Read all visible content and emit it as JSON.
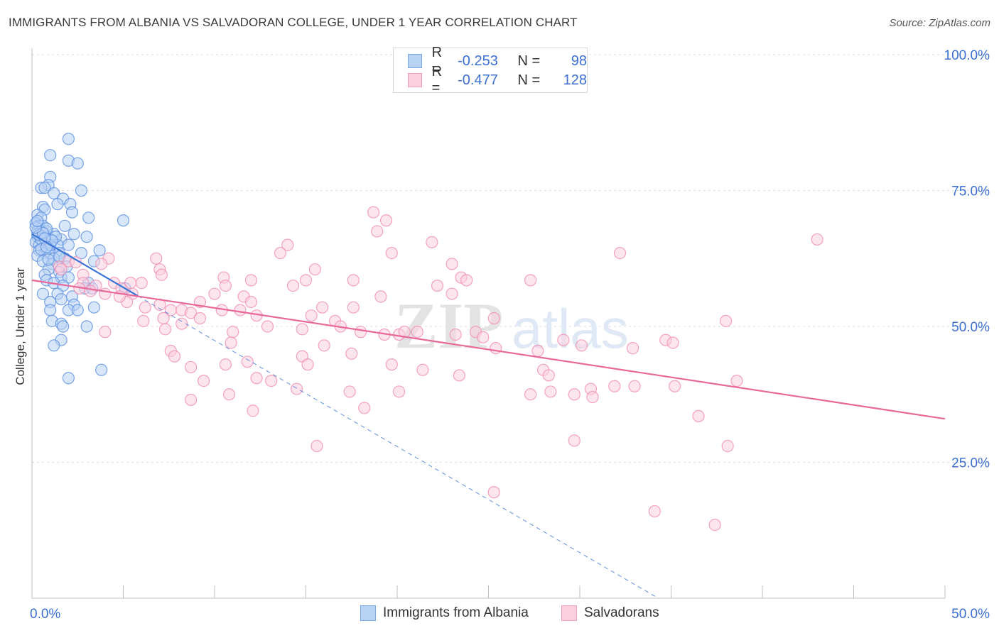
{
  "title": "IMMIGRANTS FROM ALBANIA VS SALVADORAN COLLEGE, UNDER 1 YEAR CORRELATION CHART",
  "source": "Source: ZipAtlas.com",
  "watermark": {
    "zip": "ZIP",
    "atlas": "atlas"
  },
  "legend": {
    "r_label": "R =",
    "n_label": "N =",
    "rows": [
      {
        "r": "-0.253",
        "n": "98",
        "color": "#7aa8e8",
        "fill": "#b8d2f4"
      },
      {
        "r": "-0.477",
        "n": "128",
        "color": "#f0a0bc",
        "fill": "#fbd0de"
      }
    ]
  },
  "bottom_legend": [
    "Immigrants from Albania",
    "Salvadorans"
  ],
  "chart_data": {
    "type": "scatter",
    "ylabel": "College, Under 1 year",
    "xlabel": "",
    "xlim": [
      0,
      50
    ],
    "ylim": [
      0,
      100
    ],
    "x_tick_labels": {
      "min": "0.0%",
      "max": "50.0%"
    },
    "y_tick_labels": [
      "25.0%",
      "50.0%",
      "75.0%",
      "100.0%"
    ],
    "y_ticks": [
      25,
      50,
      75,
      100
    ],
    "grid": true,
    "series": [
      {
        "name": "Immigrants from Albania",
        "color": "#5b8fe0",
        "line_color": "#3a74d6",
        "trend_solid": [
          [
            0,
            67
          ],
          [
            5.8,
            55.6
          ]
        ],
        "trend_dashed": [
          [
            5.8,
            55.6
          ],
          [
            34.3,
            0
          ]
        ],
        "points": [
          [
            2.0,
            84.5
          ],
          [
            1.0,
            81.5
          ],
          [
            2.0,
            80.5
          ],
          [
            2.5,
            80
          ],
          [
            1.0,
            77.5
          ],
          [
            0.9,
            76
          ],
          [
            0.5,
            75.5
          ],
          [
            0.7,
            75.5
          ],
          [
            1.2,
            74.5
          ],
          [
            2.7,
            75
          ],
          [
            1.7,
            73.5
          ],
          [
            1.4,
            72.5
          ],
          [
            2.1,
            72.5
          ],
          [
            0.6,
            72
          ],
          [
            0.7,
            71.5
          ],
          [
            2.2,
            71
          ],
          [
            0.3,
            70.5
          ],
          [
            0.5,
            70
          ],
          [
            3.1,
            70
          ],
          [
            5.0,
            69.5
          ],
          [
            0.2,
            69
          ],
          [
            0.4,
            68.5
          ],
          [
            0.6,
            68.5
          ],
          [
            1.8,
            68.5
          ],
          [
            0.3,
            67.5
          ],
          [
            0.5,
            67.5
          ],
          [
            0.8,
            67.5
          ],
          [
            1.2,
            67
          ],
          [
            2.3,
            67
          ],
          [
            3.0,
            66.5
          ],
          [
            0.3,
            66.5
          ],
          [
            0.7,
            66.5
          ],
          [
            1.0,
            66
          ],
          [
            1.6,
            66
          ],
          [
            0.2,
            65.5
          ],
          [
            0.6,
            65.5
          ],
          [
            1.4,
            65
          ],
          [
            2.0,
            65
          ],
          [
            0.4,
            65
          ],
          [
            0.9,
            64.5
          ],
          [
            3.7,
            64
          ],
          [
            0.4,
            64
          ],
          [
            0.7,
            63.5
          ],
          [
            1.0,
            63.5
          ],
          [
            1.5,
            63.5
          ],
          [
            2.7,
            63.5
          ],
          [
            0.3,
            63
          ],
          [
            1.2,
            62.5
          ],
          [
            1.8,
            62.5
          ],
          [
            0.6,
            62
          ],
          [
            3.4,
            62
          ],
          [
            1.1,
            61.5
          ],
          [
            1.9,
            61
          ],
          [
            0.9,
            60.5
          ],
          [
            1.5,
            60
          ],
          [
            0.7,
            59.5
          ],
          [
            1.6,
            59
          ],
          [
            2.0,
            59
          ],
          [
            0.8,
            58.5
          ],
          [
            1.2,
            58
          ],
          [
            3.1,
            58
          ],
          [
            1.7,
            57.5
          ],
          [
            2.9,
            57
          ],
          [
            3.3,
            57
          ],
          [
            5.1,
            57
          ],
          [
            0.6,
            56
          ],
          [
            1.4,
            56
          ],
          [
            2.2,
            55.5
          ],
          [
            1.6,
            55
          ],
          [
            1.0,
            54.5
          ],
          [
            2.3,
            54
          ],
          [
            3.4,
            53.5
          ],
          [
            1.0,
            53
          ],
          [
            2.0,
            53
          ],
          [
            2.5,
            53
          ],
          [
            1.1,
            51
          ],
          [
            1.6,
            50.5
          ],
          [
            1.7,
            50
          ],
          [
            3.0,
            50
          ],
          [
            1.6,
            47.5
          ],
          [
            1.2,
            46.5
          ],
          [
            3.8,
            42
          ],
          [
            2.0,
            40.5
          ],
          [
            0.3,
            67
          ],
          [
            0.5,
            66
          ],
          [
            0.8,
            68
          ],
          [
            1.0,
            65
          ],
          [
            0.4,
            66.8
          ],
          [
            0.6,
            67.2
          ],
          [
            0.2,
            68.2
          ],
          [
            1.3,
            66.5
          ],
          [
            0.9,
            62.3
          ],
          [
            0.5,
            64.2
          ],
          [
            1.1,
            65.8
          ],
          [
            0.7,
            66.2
          ],
          [
            0.3,
            69.4
          ],
          [
            1.5,
            62.8
          ],
          [
            0.8,
            64.6
          ]
        ]
      },
      {
        "name": "Salvadorans",
        "color": "#f08cb0",
        "line_color": "#e8689a",
        "trend_solid": [
          [
            0,
            58.5
          ],
          [
            50,
            33
          ]
        ],
        "points": [
          [
            18.7,
            71
          ],
          [
            19.4,
            69.5
          ],
          [
            18.9,
            67.5
          ],
          [
            43.0,
            66
          ],
          [
            21.9,
            65.5
          ],
          [
            14.0,
            65
          ],
          [
            13.6,
            63.5
          ],
          [
            19.7,
            63.5
          ],
          [
            32.2,
            63.5
          ],
          [
            23.0,
            61.5
          ],
          [
            4.2,
            62.5
          ],
          [
            1.5,
            61
          ],
          [
            2.0,
            62
          ],
          [
            7.0,
            60.5
          ],
          [
            15.5,
            60.5
          ],
          [
            7.1,
            59.5
          ],
          [
            2.8,
            59.5
          ],
          [
            10.5,
            59
          ],
          [
            17.6,
            58.5
          ],
          [
            15.0,
            58.5
          ],
          [
            23.5,
            59
          ],
          [
            23.8,
            58.5
          ],
          [
            27.3,
            58.5
          ],
          [
            12.0,
            58.5
          ],
          [
            2.8,
            58
          ],
          [
            14.3,
            57.5
          ],
          [
            22.2,
            57.5
          ],
          [
            10.6,
            57.5
          ],
          [
            4.5,
            58
          ],
          [
            3.5,
            57.5
          ],
          [
            4.9,
            57
          ],
          [
            5.4,
            58
          ],
          [
            6.0,
            58
          ],
          [
            2.6,
            57
          ],
          [
            3.2,
            56.5
          ],
          [
            5.5,
            56
          ],
          [
            4.0,
            56
          ],
          [
            23.0,
            56
          ],
          [
            10.0,
            56
          ],
          [
            11.6,
            55.5
          ],
          [
            19.1,
            55.5
          ],
          [
            5.2,
            54.5
          ],
          [
            7.0,
            54
          ],
          [
            12.0,
            54.5
          ],
          [
            6.2,
            53.5
          ],
          [
            7.6,
            53
          ],
          [
            8.2,
            53
          ],
          [
            8.7,
            52.5
          ],
          [
            15.9,
            53.5
          ],
          [
            10.4,
            53
          ],
          [
            17.6,
            53.5
          ],
          [
            12.3,
            52
          ],
          [
            9.2,
            51.5
          ],
          [
            7.2,
            51.5
          ],
          [
            8.2,
            50.5
          ],
          [
            6.1,
            51
          ],
          [
            16.6,
            51
          ],
          [
            25.3,
            51.5
          ],
          [
            38.0,
            51
          ],
          [
            12.9,
            50
          ],
          [
            14.8,
            49.5
          ],
          [
            16.9,
            50
          ],
          [
            11.0,
            49
          ],
          [
            7.3,
            49.5
          ],
          [
            4.0,
            49
          ],
          [
            18.0,
            49
          ],
          [
            19.3,
            48.5
          ],
          [
            20.1,
            48.5
          ],
          [
            20.4,
            49
          ],
          [
            21.1,
            49
          ],
          [
            23.2,
            48.5
          ],
          [
            24.3,
            49
          ],
          [
            24.7,
            48
          ],
          [
            29.1,
            47.5
          ],
          [
            34.7,
            47.5
          ],
          [
            10.9,
            47
          ],
          [
            16.0,
            46.5
          ],
          [
            30.1,
            46.5
          ],
          [
            32.9,
            46
          ],
          [
            25.4,
            46
          ],
          [
            7.6,
            45.5
          ],
          [
            7.8,
            44.5
          ],
          [
            14.8,
            44.5
          ],
          [
            11.8,
            43.5
          ],
          [
            15.1,
            43
          ],
          [
            17.5,
            45
          ],
          [
            27.7,
            45.5
          ],
          [
            19.7,
            43
          ],
          [
            21.4,
            42
          ],
          [
            28.0,
            42
          ],
          [
            28.3,
            41
          ],
          [
            8.7,
            42.5
          ],
          [
            10.6,
            43
          ],
          [
            12.3,
            40.5
          ],
          [
            13.1,
            40
          ],
          [
            9.4,
            40
          ],
          [
            14.5,
            38.5
          ],
          [
            17.4,
            38
          ],
          [
            20.1,
            38
          ],
          [
            23.4,
            41
          ],
          [
            28.4,
            38
          ],
          [
            33.0,
            39
          ],
          [
            27.3,
            37.5
          ],
          [
            29.7,
            37.5
          ],
          [
            30.6,
            38.5
          ],
          [
            30.7,
            37
          ],
          [
            31.9,
            39
          ],
          [
            35.2,
            39
          ],
          [
            38.6,
            40
          ],
          [
            35.1,
            47
          ],
          [
            18.2,
            35
          ],
          [
            12.1,
            34.5
          ],
          [
            8.7,
            36.5
          ],
          [
            10.8,
            37.5
          ],
          [
            36.5,
            33.5
          ],
          [
            15.6,
            28
          ],
          [
            29.7,
            29
          ],
          [
            38.1,
            28
          ],
          [
            25.3,
            19.5
          ],
          [
            34.1,
            16
          ],
          [
            37.4,
            13.5
          ],
          [
            6.8,
            62.5
          ],
          [
            9.2,
            54.5
          ],
          [
            11.4,
            53
          ],
          [
            15.3,
            52
          ],
          [
            3.8,
            61.5
          ],
          [
            1.6,
            60.5
          ],
          [
            2.4,
            61.8
          ],
          [
            4.8,
            55.5
          ]
        ]
      }
    ]
  }
}
